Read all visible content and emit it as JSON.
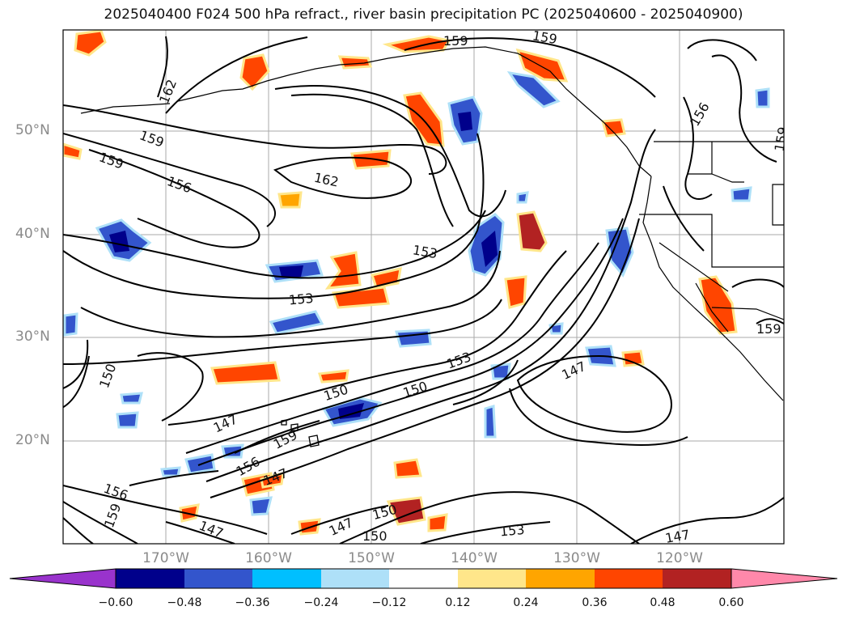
{
  "title": "2025040400 F024 500 hPa refract., river basin precipitation PC (2025040600 - 2025040900)",
  "axes": {
    "lat_labels": [
      "50°N",
      "40°N",
      "30°N",
      "20°N"
    ],
    "lon_labels": [
      "170°W",
      "160°W",
      "150°W",
      "140°W",
      "130°W",
      "120°W"
    ]
  },
  "contour_labels": [
    "162",
    "159",
    "159",
    "156",
    "162",
    "159",
    "159",
    "156",
    "159",
    "153",
    "153",
    "150",
    "150",
    "153",
    "147",
    "159",
    "147",
    "150",
    "147",
    "156",
    "159",
    "147",
    "150",
    "147",
    "150",
    "153",
    "147",
    "159"
  ],
  "colorbar": {
    "ticks": [
      "−0.60",
      "−0.48",
      "−0.36",
      "−0.24",
      "−0.12",
      "0.12",
      "0.24",
      "0.36",
      "0.48",
      "0.60"
    ],
    "colors": [
      "#9933cc",
      "#00008b",
      "#3355cc",
      "#00bfff",
      "#aee0f8",
      "#ffffff",
      "#ffe68a",
      "#ffa500",
      "#ff4500",
      "#b22222",
      "#ff88aa"
    ],
    "extend": "both"
  },
  "colors": {
    "map_background": "#ffffff",
    "contour": "#000000",
    "grid": "#aaaaaa",
    "tick_text": "#8a8a8a"
  }
}
